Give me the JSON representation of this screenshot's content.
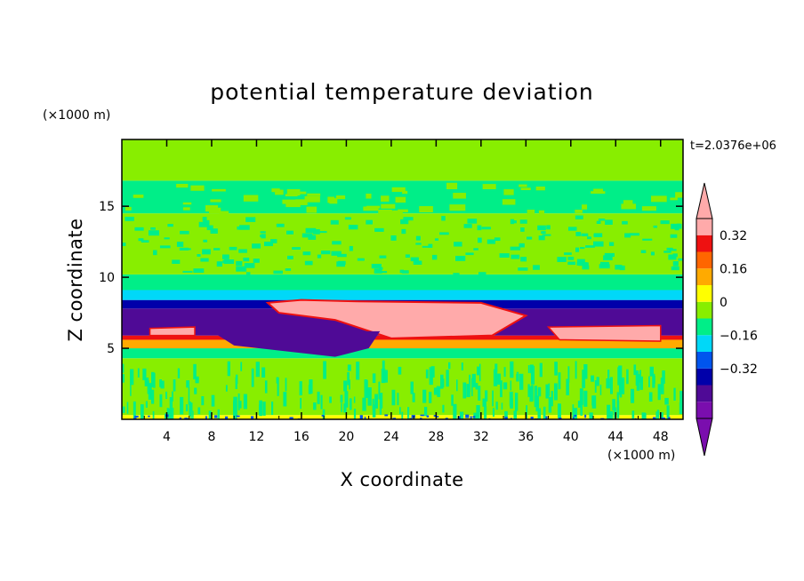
{
  "chart_data": {
    "type": "heatmap",
    "title": "potential temperature deviation",
    "xlabel": "X coordinate",
    "ylabel": "Z coordinate",
    "x_unit": "(×1000 m)",
    "y_unit": "(×1000 m)",
    "time_label": "t=2.0376e+06",
    "xlim": [
      0,
      50
    ],
    "ylim": [
      0,
      19.7
    ],
    "x_ticks": [
      4,
      8,
      12,
      16,
      20,
      24,
      28,
      32,
      36,
      40,
      44,
      48
    ],
    "y_ticks": [
      5,
      10,
      15
    ],
    "colorbar": {
      "levels": [
        -0.48,
        -0.4,
        -0.32,
        -0.24,
        -0.16,
        -0.08,
        0,
        0.08,
        0.16,
        0.24,
        0.32,
        0.4
      ],
      "labeled": [
        {
          "value": 0.32,
          "text": "0.32"
        },
        {
          "value": 0.16,
          "text": "0.16"
        },
        {
          "value": 0,
          "text": "0"
        },
        {
          "value": -0.16,
          "text": "−0.16"
        },
        {
          "value": -0.32,
          "text": "−0.32"
        }
      ],
      "colors": [
        "#7a0eae",
        "#4f0a96",
        "#0000aa",
        "#0055ee",
        "#00d8f8",
        "#00ee88",
        "#88ee00",
        "#ffff00",
        "#ffaa00",
        "#ff6600",
        "#ee1111",
        "#ffaaaa"
      ],
      "under_color": "#7a0eae",
      "over_color": "#ffaaaa"
    },
    "bands": [
      {
        "z": [
          0,
          0.3
        ],
        "color": "#ffff00"
      },
      {
        "z": [
          0.3,
          4.3
        ],
        "color": "#88ee00"
      },
      {
        "z": [
          4.3,
          5.0
        ],
        "color": "#00ee88"
      },
      {
        "z": [
          5.0,
          5.6
        ],
        "color": "#ffaa00"
      },
      {
        "z": [
          5.6,
          5.9
        ],
        "color": "#ee1111"
      },
      {
        "z": [
          5.9,
          7.8
        ],
        "color": "#4f0a96"
      },
      {
        "z": [
          7.8,
          8.4
        ],
        "color": "#0000aa"
      },
      {
        "z": [
          8.4,
          9.1
        ],
        "color": "#00d8f8"
      },
      {
        "z": [
          9.1,
          10.2
        ],
        "color": "#00ee88"
      },
      {
        "z": [
          10.2,
          14.5
        ],
        "color": "#88ee00"
      },
      {
        "z": [
          14.5,
          16.8
        ],
        "color": "#00ee88"
      },
      {
        "z": [
          16.8,
          19.7
        ],
        "color": "#88ee00"
      }
    ],
    "warm_anomaly": {
      "x": [
        13,
        36
      ],
      "z": [
        5.8,
        8.3
      ],
      "color": "#ffaaaa",
      "outline_color": "#ee1111",
      "x_right": [
        38,
        48
      ],
      "z_right": [
        5.5,
        6.5
      ]
    },
    "cold_tongue": {
      "x": [
        8,
        22
      ],
      "z": [
        4.4,
        6.2
      ],
      "color": "#4f0a96"
    }
  }
}
